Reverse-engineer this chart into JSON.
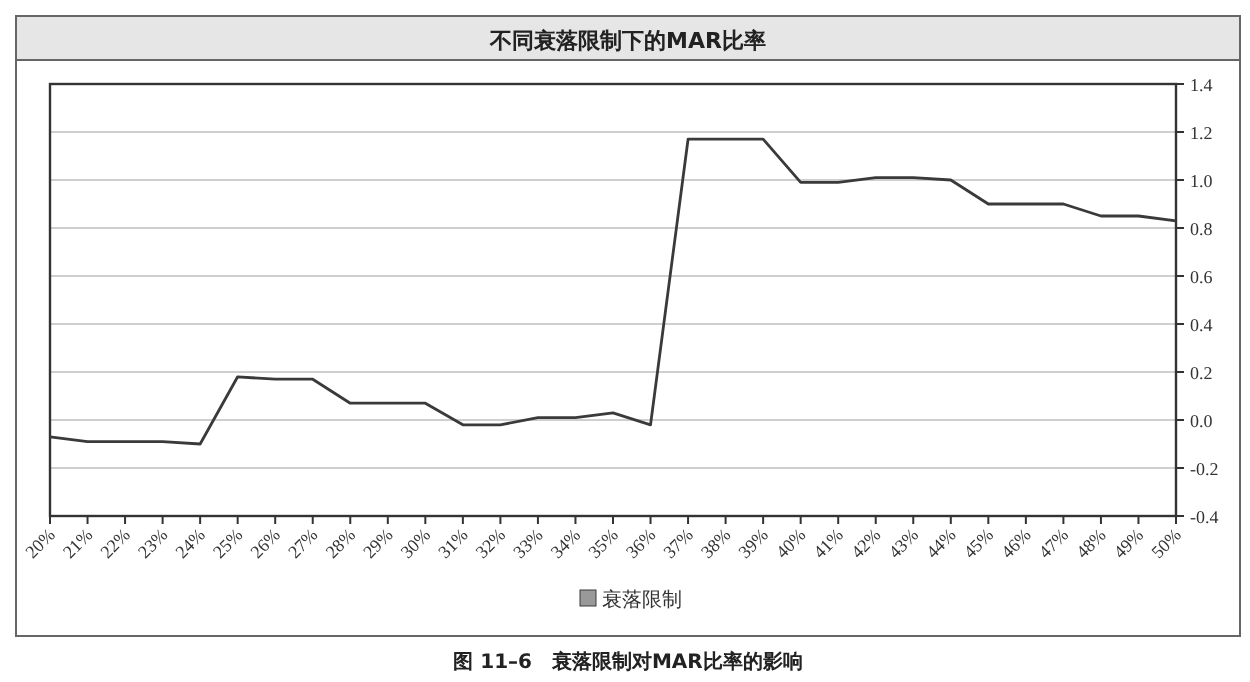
{
  "chart_data": {
    "type": "line",
    "title": "不同衰落限制下的MAR比率",
    "categories": [
      "20%",
      "21%",
      "22%",
      "23%",
      "24%",
      "25%",
      "26%",
      "27%",
      "28%",
      "29%",
      "30%",
      "31%",
      "32%",
      "33%",
      "34%",
      "35%",
      "36%",
      "37%",
      "38%",
      "39%",
      "40%",
      "41%",
      "42%",
      "43%",
      "44%",
      "45%",
      "46%",
      "47%",
      "48%",
      "49%",
      "50%"
    ],
    "series": [
      {
        "name": "衰落限制",
        "color": "#3a3a3a",
        "values": [
          -0.07,
          -0.09,
          -0.09,
          -0.09,
          -0.1,
          0.18,
          0.17,
          0.17,
          0.07,
          0.07,
          0.07,
          -0.02,
          -0.02,
          0.01,
          0.01,
          0.03,
          -0.02,
          1.17,
          1.17,
          1.17,
          0.99,
          0.99,
          1.01,
          1.01,
          1.0,
          0.9,
          0.9,
          0.9,
          0.85,
          0.85,
          0.83
        ]
      }
    ],
    "ylim": [
      -0.4,
      1.4
    ],
    "yticks": [
      -0.4,
      -0.2,
      {
        "value": 0,
        "label": "0.0"
      },
      0.2,
      0.4,
      0.6,
      0.8,
      {
        "value": 1,
        "label": "1.0"
      },
      1.2,
      1.4
    ],
    "grid": "y",
    "legend": "bottom",
    "marker": "none",
    "line_style": "solid",
    "annotations": [
      "图 11–6　衰落限制对MAR比率的影响"
    ]
  }
}
